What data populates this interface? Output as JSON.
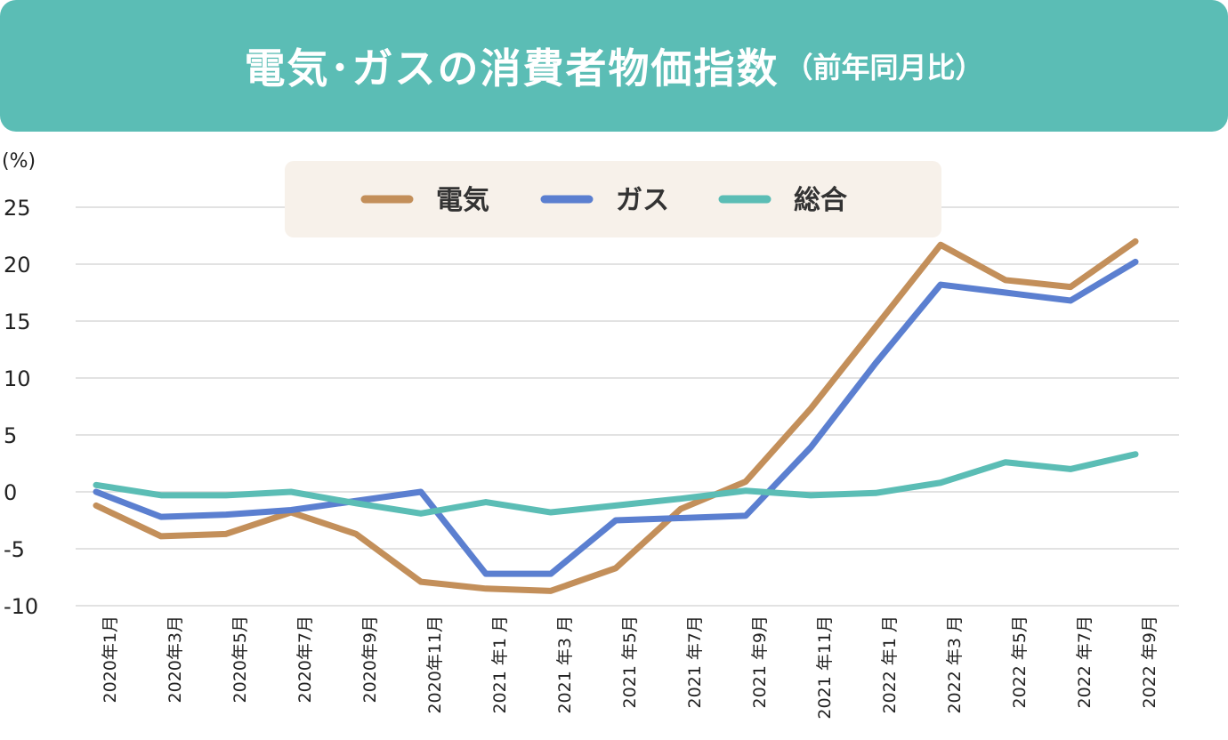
{
  "header": {
    "title": "電気･ガスの消費者物価指数",
    "subtitle": "（前年同月比）"
  },
  "chart_data": {
    "type": "line",
    "title": "電気･ガスの消費者物価指数（前年同月比）",
    "ylabel": "(%)",
    "ylim": [
      -10,
      25
    ],
    "yticks": [
      25,
      20,
      15,
      10,
      5,
      0,
      -5,
      -10
    ],
    "grid": true,
    "legend_position": "top-center",
    "x_tick_labels": [
      "2020年1月",
      "2020年3月",
      "2020年5月",
      "2020年7月",
      "2020年9月",
      "2020年11月",
      "2021 年1 月",
      "2021 年3 月",
      "2021 年5月",
      "2021 年7月",
      "2021 年9月",
      "2021 年11月",
      "2022 年1 月",
      "2022 年3 月",
      "2022 年5月",
      "2022 年7月",
      "2022 年9月"
    ],
    "series": [
      {
        "name": "電気",
        "color": "#c38f5a",
        "values": [
          -1.2,
          -3.9,
          -3.7,
          -1.8,
          -3.7,
          -7.9,
          -8.5,
          -8.7,
          -6.7,
          -1.5,
          0.9,
          7.3,
          14.5,
          21.7,
          18.6,
          18.0,
          22.0
        ]
      },
      {
        "name": "ガス",
        "color": "#5b7fd0",
        "values": [
          0.0,
          -2.2,
          -2.0,
          -1.6,
          -0.8,
          0.0,
          -7.2,
          -7.2,
          -2.5,
          -2.3,
          -2.1,
          3.9,
          11.3,
          18.2,
          17.5,
          16.8,
          20.2
        ]
      },
      {
        "name": "総合",
        "color": "#5bbdb5",
        "values": [
          0.6,
          -0.3,
          -0.3,
          0.0,
          -1.0,
          -1.9,
          -0.9,
          -1.8,
          -1.2,
          -0.6,
          0.1,
          -0.3,
          -0.1,
          0.8,
          2.6,
          2.0,
          3.3
        ]
      }
    ]
  }
}
